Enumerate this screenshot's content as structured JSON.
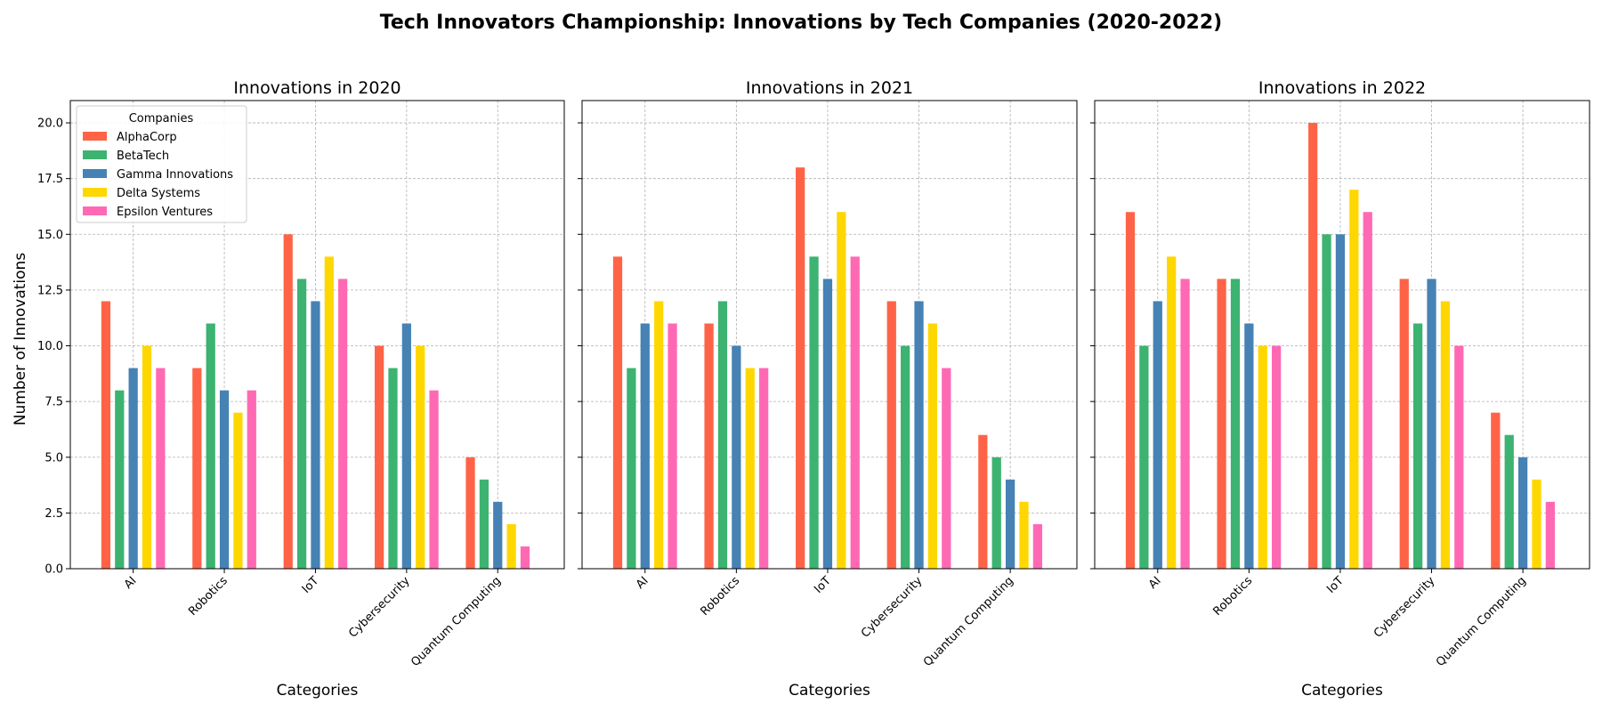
{
  "chart_data": {
    "type": "bar",
    "title": "Tech Innovators Championship: Innovations by Tech Companies (2020-2022)",
    "ylabel": "Number of Innovations",
    "xlabel": "Categories",
    "ylim": [
      0,
      21
    ],
    "yticks": [
      "0.0",
      "2.5",
      "5.0",
      "7.5",
      "10.0",
      "12.5",
      "15.0",
      "17.5",
      "20.0"
    ],
    "categories": [
      "AI",
      "Robotics",
      "IoT",
      "Cybersecurity",
      "Quantum Computing"
    ],
    "grid": true,
    "legend": {
      "title": "Companies",
      "placement": "top-left",
      "entries": [
        "AlphaCorp",
        "BetaTech",
        "Gamma Innovations",
        "Delta Systems",
        "Epsilon Ventures"
      ]
    },
    "colors": [
      "#ff6347",
      "#3cb371",
      "#4682b4",
      "#ffd700",
      "#ff69b4"
    ],
    "panels": [
      {
        "title": "Innovations in 2020",
        "series": [
          {
            "name": "AlphaCorp",
            "values": [
              12,
              9,
              15,
              10,
              5
            ]
          },
          {
            "name": "BetaTech",
            "values": [
              8,
              11,
              13,
              9,
              4
            ]
          },
          {
            "name": "Gamma Innovations",
            "values": [
              9,
              8,
              12,
              11,
              3
            ]
          },
          {
            "name": "Delta Systems",
            "values": [
              10,
              7,
              14,
              10,
              2
            ]
          },
          {
            "name": "Epsilon Ventures",
            "values": [
              9,
              8,
              13,
              8,
              1
            ]
          }
        ]
      },
      {
        "title": "Innovations in 2021",
        "series": [
          {
            "name": "AlphaCorp",
            "values": [
              14,
              11,
              18,
              12,
              6
            ]
          },
          {
            "name": "BetaTech",
            "values": [
              9,
              12,
              14,
              10,
              5
            ]
          },
          {
            "name": "Gamma Innovations",
            "values": [
              11,
              10,
              13,
              12,
              4
            ]
          },
          {
            "name": "Delta Systems",
            "values": [
              12,
              9,
              16,
              11,
              3
            ]
          },
          {
            "name": "Epsilon Ventures",
            "values": [
              11,
              9,
              14,
              9,
              2
            ]
          }
        ]
      },
      {
        "title": "Innovations in 2022",
        "series": [
          {
            "name": "AlphaCorp",
            "values": [
              16,
              13,
              20,
              13,
              7
            ]
          },
          {
            "name": "BetaTech",
            "values": [
              10,
              13,
              15,
              11,
              6
            ]
          },
          {
            "name": "Gamma Innovations",
            "values": [
              12,
              11,
              15,
              13,
              5
            ]
          },
          {
            "name": "Delta Systems",
            "values": [
              14,
              10,
              17,
              12,
              4
            ]
          },
          {
            "name": "Epsilon Ventures",
            "values": [
              13,
              10,
              16,
              10,
              3
            ]
          }
        ]
      }
    ]
  }
}
